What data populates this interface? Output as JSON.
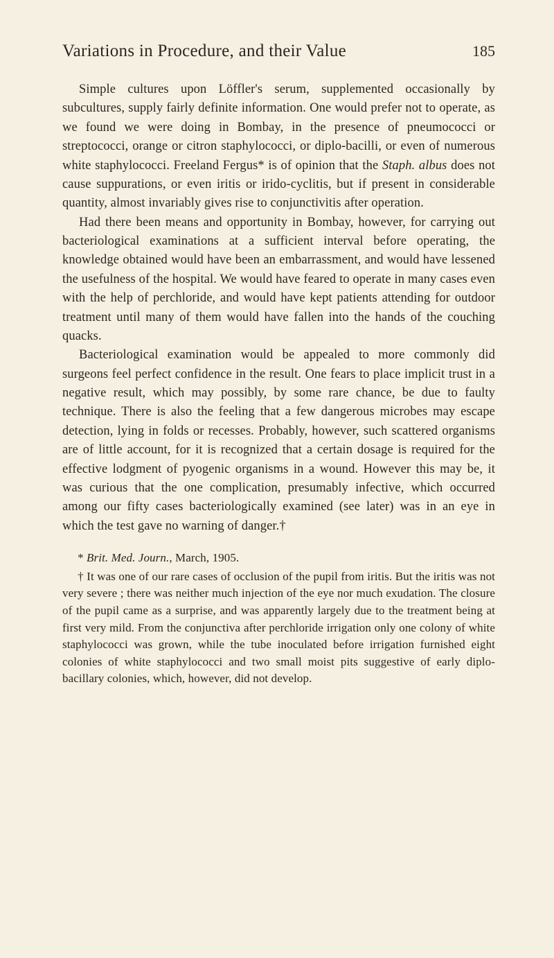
{
  "header": {
    "running_title": "Variations in Procedure, and their Value",
    "page_number": "185"
  },
  "paragraphs": {
    "p1_a": "Simple cultures upon Löffler's serum, supplemented occasionally by subcultures, supply fairly definite information. One would prefer not to operate, as we found we were doing in Bombay, in the presence of pneumococci or streptococci, orange or citron staphylococci, or diplo-bacilli, or even of numerous white staphylococci. Freeland Fergus* is of opinion that the ",
    "p1_italic": "Staph. albus",
    "p1_b": " does not cause suppurations, or even iritis or irido-cyclitis, but if present in considerable quantity, almost invariably gives rise to conjunctivitis after operation.",
    "p2": "Had there been means and opportunity in Bombay, however, for carrying out bacteriological examinations at a sufficient interval before operating, the knowledge obtained would have been an embarrassment, and would have lessened the usefulness of the hospital. We would have feared to operate in many cases even with the help of perchloride, and would have kept patients attending for outdoor treatment until many of them would have fallen into the hands of the couching quacks.",
    "p3": "Bacteriological examination would be appealed to more commonly did surgeons feel perfect confidence in the result. One fears to place implicit trust in a negative result, which may possibly, by some rare chance, be due to faulty technique. There is also the feeling that a few dangerous microbes may escape detection, lying in folds or recesses. Probably, however, such scattered organisms are of little account, for it is recognized that a certain dosage is required for the effective lodgment of pyogenic organisms in a wound. However this may be, it was curious that the one complication, presumably infective, which occurred among our fifty cases bacteriologically examined (see later) was in an eye in which the test gave no warning of danger.†"
  },
  "footnotes": {
    "fn1_a": "* ",
    "fn1_italic": "Brit. Med. Journ.",
    "fn1_b": ", March, 1905.",
    "fn2": "† It was one of our rare cases of occlusion of the pupil from iritis. But the iritis was not very severe ; there was neither much injection of the eye nor much exudation. The closure of the pupil came as a surprise, and was apparently largely due to the treatment being at first very mild. From the conjunctiva after perchloride irrigation only one colony of white staphylococci was grown, while the tube inoculated before irrigation furnished eight colonies of white staphylococci and two small moist pits suggestive of early diplo-bacillary colonies, which, however, did not develop."
  }
}
